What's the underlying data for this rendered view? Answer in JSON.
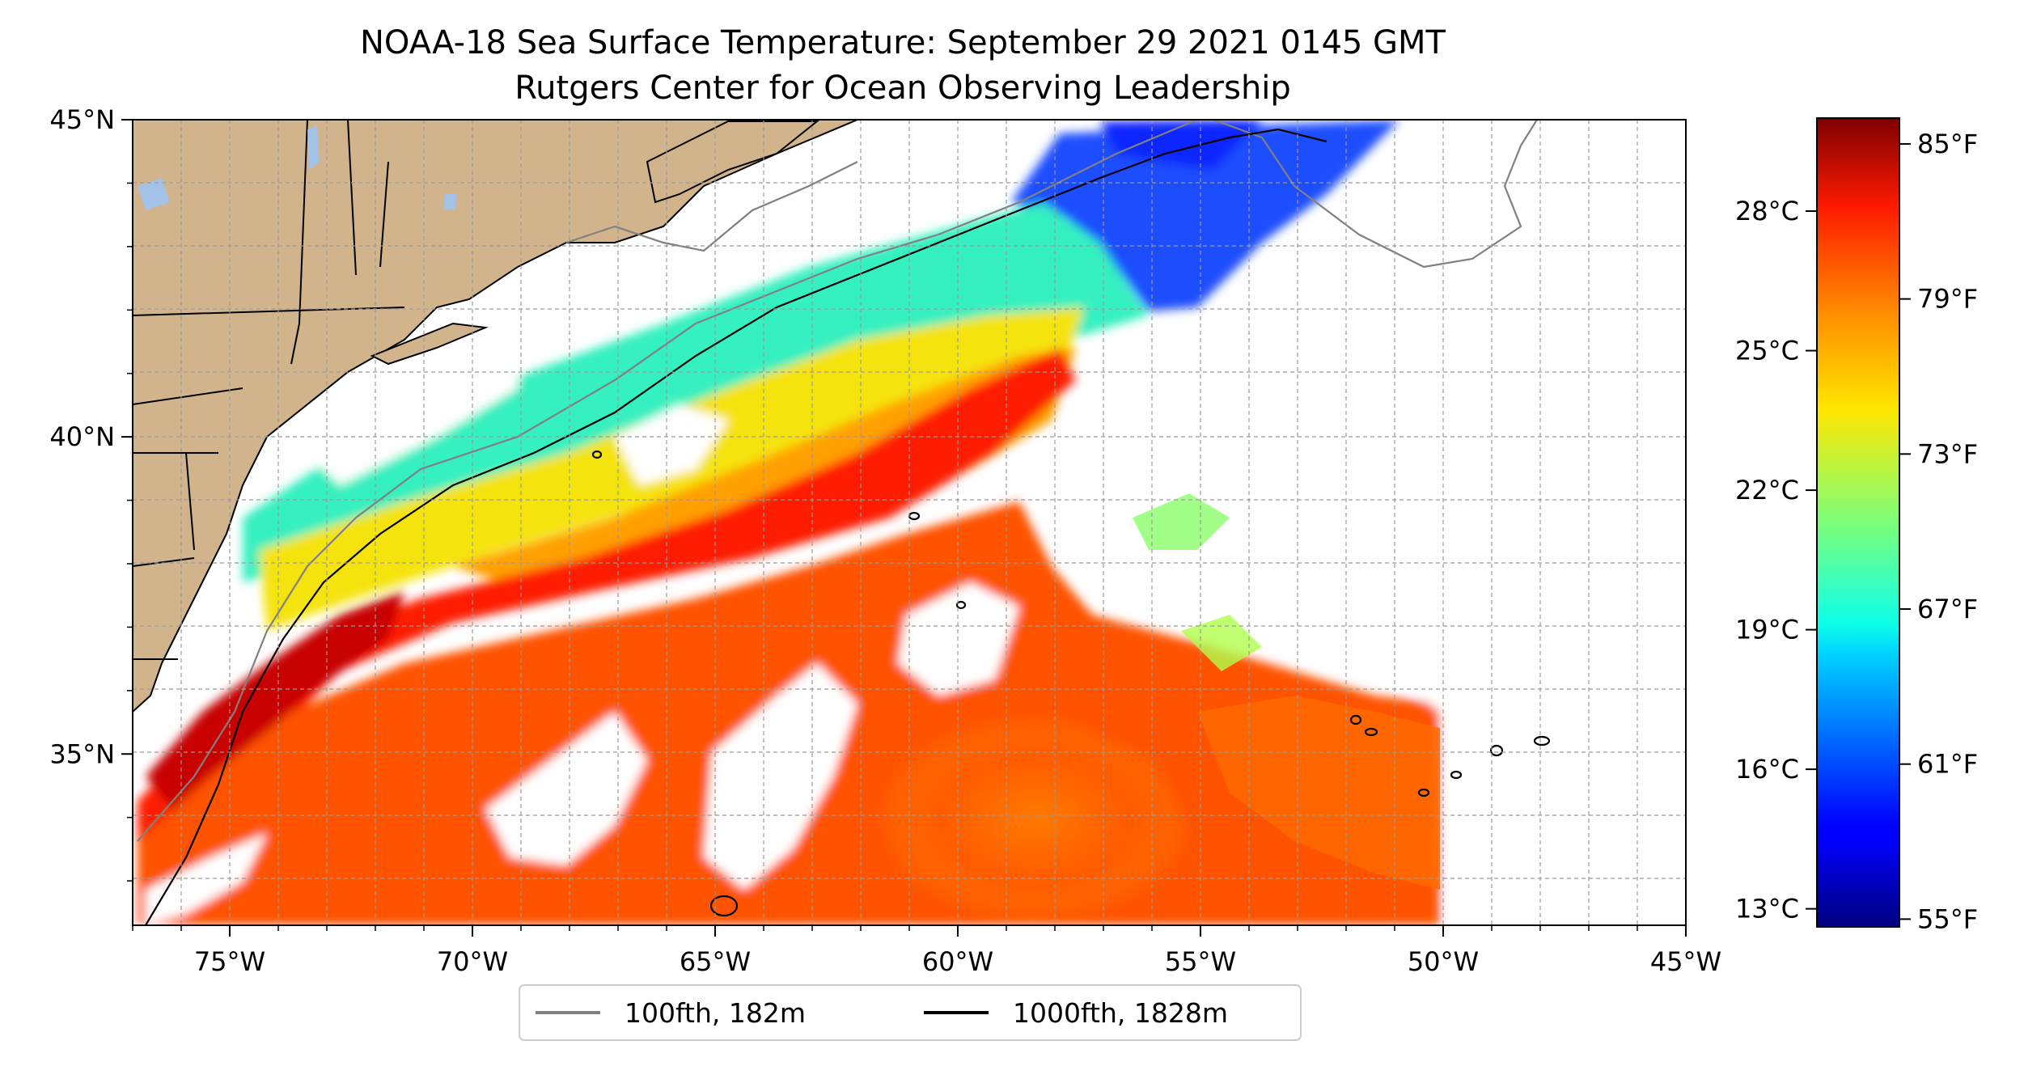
{
  "title": {
    "line1": "NOAA-18 Sea Surface Temperature: September 29 2021 0145 GMT",
    "line2": "Rutgers Center for Ocean Observing Leadership"
  },
  "map": {
    "lon_range": [
      -77,
      -45
    ],
    "lat_range": [
      32.3,
      45
    ],
    "x_ticks": [
      {
        "lon": -75,
        "label": "75°W"
      },
      {
        "lon": -70,
        "label": "70°W"
      },
      {
        "lon": -65,
        "label": "65°W"
      },
      {
        "lon": -60,
        "label": "60°W"
      },
      {
        "lon": -55,
        "label": "55°W"
      },
      {
        "lon": -50,
        "label": "50°W"
      },
      {
        "lon": -45,
        "label": "45°W"
      }
    ],
    "y_ticks": [
      {
        "lat": 45,
        "label": "45°N"
      },
      {
        "lat": 40,
        "label": "40°N"
      },
      {
        "lat": 35,
        "label": "35°N"
      }
    ],
    "grid": "dashed, every 1 degree",
    "colors": {
      "land": "#d2b48c",
      "lakes": "#a4c1e8",
      "no_data": "#ffffff",
      "contour_100fth": "#808080",
      "contour_1000fth": "#000000"
    }
  },
  "legend": {
    "placement": "bottom-center",
    "items": [
      {
        "label": "100fth, 182m",
        "color": "#808080"
      },
      {
        "label": "1000fth, 1828m",
        "color": "#000000"
      }
    ]
  },
  "colorbar": {
    "colormap": "jet",
    "celsius_labels": [
      "28°C",
      "25°C",
      "22°C",
      "19°C",
      "16°C",
      "13°C"
    ],
    "celsius_values": [
      28,
      25,
      22,
      19,
      16,
      13
    ],
    "fahrenheit_labels": [
      "85°F",
      "79°F",
      "73°F",
      "67°F",
      "61°F",
      "55°F"
    ],
    "fahrenheit_values": [
      85,
      79,
      73,
      67,
      61,
      55
    ],
    "range_f": [
      54.7,
      86
    ]
  }
}
